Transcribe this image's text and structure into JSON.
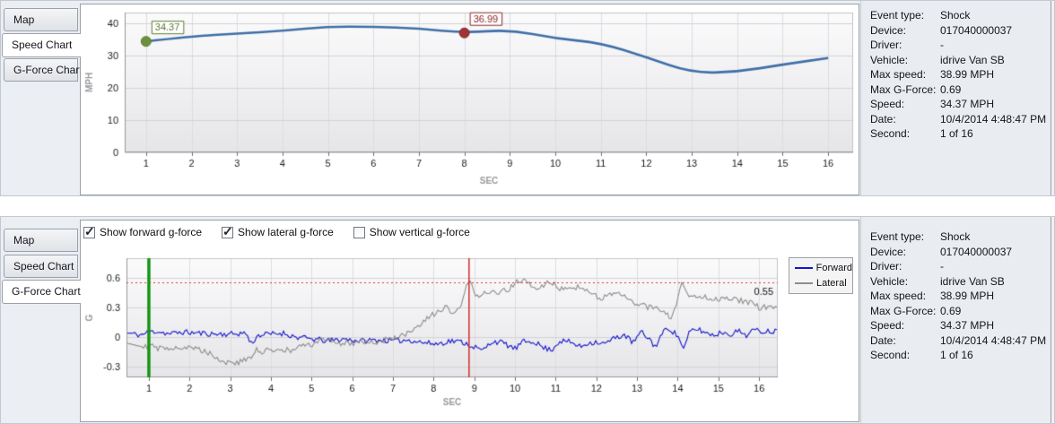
{
  "top_panel": {
    "tabs": [
      {
        "label": "Map",
        "selected": false
      },
      {
        "label": "Speed Chart",
        "selected": true
      },
      {
        "label": "G-Force Chart",
        "selected": false
      }
    ]
  },
  "bottom_panel": {
    "tabs": [
      {
        "label": "Map",
        "selected": false
      },
      {
        "label": "Speed Chart",
        "selected": false
      },
      {
        "label": "G-Force Chart",
        "selected": true
      }
    ],
    "checkboxes": [
      {
        "label": "Show forward g-force",
        "checked": true
      },
      {
        "label": "Show lateral g-force",
        "checked": true
      },
      {
        "label": "Show vertical g-force",
        "checked": false
      }
    ]
  },
  "details": {
    "rows": [
      {
        "label": "Event type:",
        "value": "Shock"
      },
      {
        "label": "Device:",
        "value": "017040000037"
      },
      {
        "label": "Driver:",
        "value": "-"
      },
      {
        "label": "Vehicle:",
        "value": "idrive Van SB"
      },
      {
        "label": "Max speed:",
        "value": "38.99 MPH"
      },
      {
        "label": "Max G-Force:",
        "value": "0.69"
      },
      {
        "label": "Speed:",
        "value": "34.37 MPH"
      },
      {
        "label": "Date:",
        "value": "10/4/2014 4:48:47 PM"
      },
      {
        "label": "Second:",
        "value": "1 of 16"
      }
    ]
  },
  "chart_data": [
    {
      "type": "line",
      "title": "Speed Chart",
      "xlabel": "SEC",
      "ylabel": "MPH",
      "x": [
        1,
        2,
        3,
        4,
        5,
        6,
        7,
        8,
        9,
        10,
        11,
        12,
        13,
        14,
        15,
        16
      ],
      "values": [
        34.37,
        35.9,
        36.8,
        37.6,
        38.99,
        38.9,
        38.4,
        36.99,
        38.0,
        35.3,
        33.9,
        29.5,
        24.6,
        24.9,
        27.2,
        29.2
      ],
      "yticks": [
        0,
        10,
        20,
        30,
        40
      ],
      "xlim": [
        0.53,
        16.55
      ],
      "ylim": [
        0,
        43.3
      ],
      "line_color": "#3f6fa8",
      "grid": true,
      "markers": [
        {
          "x": 1,
          "value": 34.37,
          "label": "34.37",
          "color": "#6d8f3e",
          "border": "#5a7a2f"
        },
        {
          "x": 8,
          "value": 36.99,
          "label": "36.99",
          "color": "#9e3434",
          "border": "#8a2626"
        }
      ]
    },
    {
      "type": "line",
      "title": "G-Force Chart",
      "xlabel": "SEC",
      "ylabel": "G",
      "xticks": [
        1,
        2,
        3,
        4,
        5,
        6,
        7,
        8,
        9,
        10,
        11,
        12,
        13,
        14,
        15,
        16
      ],
      "yticks": [
        -0.3,
        0,
        0.3,
        0.6
      ],
      "xlim": [
        0.45,
        16.46
      ],
      "ylim": [
        -0.41,
        0.8
      ],
      "grid": true,
      "legend_position": "top-right",
      "threshold": {
        "value": 0.55,
        "label": "0.55",
        "color": "#e03434"
      },
      "event_lines": [
        {
          "name": "event-start-line",
          "x": 1,
          "color": "#149414",
          "width": 3.5
        },
        {
          "name": "shock-moment-line",
          "x": 8.87,
          "color": "#d42a2a",
          "width": 1.5
        }
      ],
      "series": [
        {
          "name": "Forward",
          "color": "#1414cc",
          "seed": 11,
          "noise": 0.028,
          "keypoints": [
            [
              0.45,
              0.04
            ],
            [
              0.8,
              0.02
            ],
            [
              1.0,
              0.05
            ],
            [
              1.2,
              0.06
            ],
            [
              1.5,
              0.03
            ],
            [
              1.8,
              0.05
            ],
            [
              2.2,
              0.04
            ],
            [
              2.6,
              0.03
            ],
            [
              3.0,
              0.03
            ],
            [
              3.4,
              0.04
            ],
            [
              3.5,
              -0.07
            ],
            [
              3.7,
              0.02
            ],
            [
              4.0,
              0.03
            ],
            [
              4.3,
              0.04
            ],
            [
              4.6,
              0.0
            ],
            [
              5.0,
              -0.02
            ],
            [
              5.4,
              -0.04
            ],
            [
              5.8,
              -0.02
            ],
            [
              6.2,
              -0.04
            ],
            [
              6.6,
              -0.03
            ],
            [
              7.0,
              -0.04
            ],
            [
              7.4,
              -0.03
            ],
            [
              7.8,
              -0.06
            ],
            [
              8.1,
              -0.07
            ],
            [
              8.4,
              -0.04
            ],
            [
              8.7,
              -0.05
            ],
            [
              9.0,
              -0.1
            ],
            [
              9.2,
              -0.14
            ],
            [
              9.45,
              -0.04
            ],
            [
              9.7,
              -0.06
            ],
            [
              10.0,
              -0.12
            ],
            [
              10.2,
              -0.05
            ],
            [
              10.45,
              -0.04
            ],
            [
              10.7,
              -0.11
            ],
            [
              10.9,
              -0.13
            ],
            [
              11.1,
              -0.04
            ],
            [
              11.35,
              -0.05
            ],
            [
              11.6,
              -0.1
            ],
            [
              11.8,
              -0.06
            ],
            [
              12.0,
              -0.05
            ],
            [
              12.2,
              -0.07
            ],
            [
              12.5,
              0.0
            ],
            [
              12.7,
              0.02
            ],
            [
              12.9,
              -0.06
            ],
            [
              13.1,
              0.05
            ],
            [
              13.3,
              -0.02
            ],
            [
              13.45,
              -0.1
            ],
            [
              13.6,
              0.02
            ],
            [
              13.75,
              0.1
            ],
            [
              13.9,
              0.05
            ],
            [
              14.05,
              -0.02
            ],
            [
              14.15,
              -0.13
            ],
            [
              14.3,
              0.06
            ],
            [
              14.5,
              0.08
            ],
            [
              14.7,
              0.04
            ],
            [
              14.9,
              0.02
            ],
            [
              15.1,
              0.05
            ],
            [
              15.3,
              0.03
            ],
            [
              15.5,
              0.06
            ],
            [
              15.7,
              0.02
            ],
            [
              15.85,
              0.07
            ],
            [
              16.0,
              0.06
            ]
          ]
        },
        {
          "name": "Lateral",
          "color": "#8c8c8c",
          "seed": 29,
          "noise": 0.03,
          "keypoints": [
            [
              0.45,
              -0.04
            ],
            [
              0.7,
              -0.08
            ],
            [
              1.0,
              -0.09
            ],
            [
              1.3,
              -0.12
            ],
            [
              1.6,
              -0.1
            ],
            [
              1.9,
              -0.11
            ],
            [
              2.2,
              -0.12
            ],
            [
              2.5,
              -0.16
            ],
            [
              2.7,
              -0.22
            ],
            [
              2.85,
              -0.26
            ],
            [
              3.0,
              -0.25
            ],
            [
              3.15,
              -0.27
            ],
            [
              3.3,
              -0.24
            ],
            [
              3.5,
              -0.22
            ],
            [
              3.65,
              -0.13
            ],
            [
              3.8,
              -0.16
            ],
            [
              4.0,
              -0.12
            ],
            [
              4.2,
              -0.13
            ],
            [
              4.5,
              -0.14
            ],
            [
              4.7,
              -0.1
            ],
            [
              5.0,
              -0.08
            ],
            [
              5.2,
              -0.04
            ],
            [
              5.45,
              -0.02
            ],
            [
              5.7,
              -0.07
            ],
            [
              6.0,
              -0.06
            ],
            [
              6.3,
              -0.04
            ],
            [
              6.6,
              -0.06
            ],
            [
              6.9,
              -0.02
            ],
            [
              7.1,
              0.0
            ],
            [
              7.3,
              0.02
            ],
            [
              7.5,
              0.06
            ],
            [
              7.7,
              0.13
            ],
            [
              7.9,
              0.2
            ],
            [
              8.1,
              0.26
            ],
            [
              8.3,
              0.3
            ],
            [
              8.5,
              0.22
            ],
            [
              8.65,
              0.3
            ],
            [
              8.8,
              0.5
            ],
            [
              8.9,
              0.55
            ],
            [
              9.0,
              0.45
            ],
            [
              9.15,
              0.42
            ],
            [
              9.3,
              0.46
            ],
            [
              9.5,
              0.44
            ],
            [
              9.7,
              0.46
            ],
            [
              9.9,
              0.5
            ],
            [
              10.0,
              0.55
            ],
            [
              10.15,
              0.58
            ],
            [
              10.3,
              0.55
            ],
            [
              10.45,
              0.5
            ],
            [
              10.6,
              0.48
            ],
            [
              10.75,
              0.55
            ],
            [
              10.9,
              0.55
            ],
            [
              11.05,
              0.5
            ],
            [
              11.2,
              0.5
            ],
            [
              11.4,
              0.52
            ],
            [
              11.55,
              0.5
            ],
            [
              11.7,
              0.48
            ],
            [
              11.9,
              0.44
            ],
            [
              12.1,
              0.4
            ],
            [
              12.3,
              0.42
            ],
            [
              12.5,
              0.44
            ],
            [
              12.7,
              0.4
            ],
            [
              12.9,
              0.36
            ],
            [
              13.1,
              0.32
            ],
            [
              13.3,
              0.3
            ],
            [
              13.5,
              0.31
            ],
            [
              13.7,
              0.24
            ],
            [
              13.85,
              0.17
            ],
            [
              14.0,
              0.4
            ],
            [
              14.1,
              0.54
            ],
            [
              14.25,
              0.44
            ],
            [
              14.4,
              0.4
            ],
            [
              14.6,
              0.42
            ],
            [
              14.8,
              0.4
            ],
            [
              15.0,
              0.38
            ],
            [
              15.2,
              0.41
            ],
            [
              15.4,
              0.38
            ],
            [
              15.6,
              0.36
            ],
            [
              15.8,
              0.34
            ],
            [
              16.0,
              0.3
            ]
          ]
        }
      ]
    }
  ]
}
